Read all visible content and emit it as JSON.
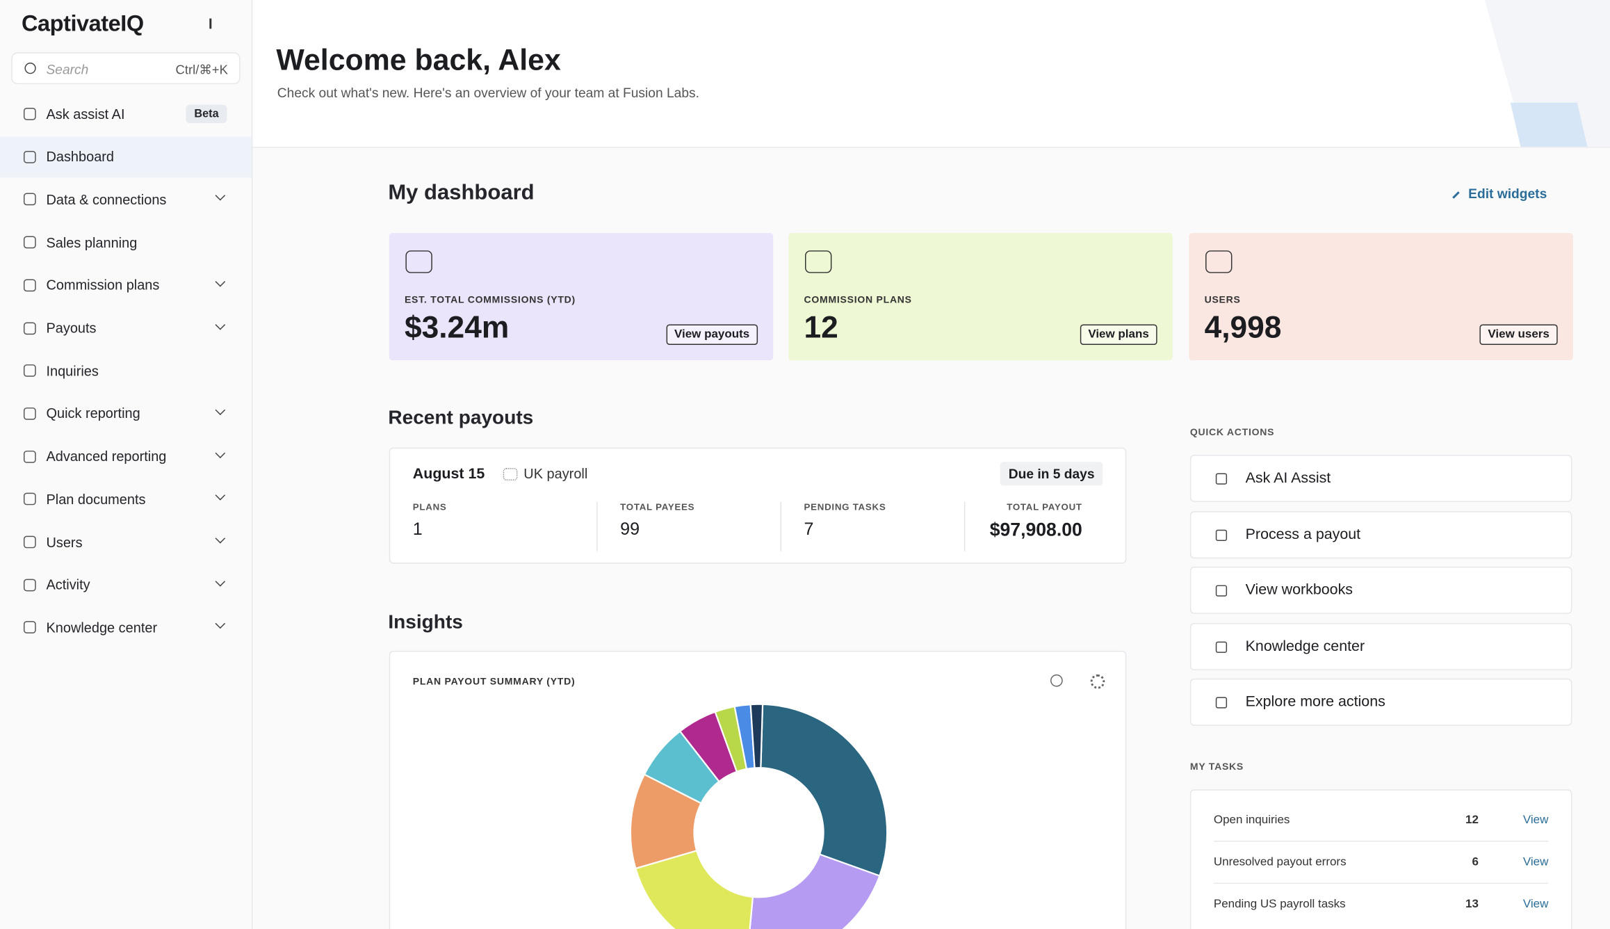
{
  "sidebar": {
    "brand": "CaptivateIQ",
    "search_placeholder": "Search",
    "search_shortcut": "Ctrl/⌘+K",
    "items": [
      {
        "label": "Ask assist AI",
        "badge": "Beta"
      },
      {
        "label": "Dashboard",
        "active": true
      },
      {
        "label": "Data & connections",
        "expandable": true
      },
      {
        "label": "Sales planning"
      },
      {
        "label": "Commission plans",
        "expandable": true
      },
      {
        "label": "Payouts",
        "expandable": true
      },
      {
        "label": "Inquiries"
      },
      {
        "label": "Quick reporting",
        "expandable": true
      },
      {
        "label": "Advanced reporting",
        "expandable": true
      },
      {
        "label": "Plan documents",
        "expandable": true
      },
      {
        "label": "Users",
        "expandable": true
      },
      {
        "label": "Activity",
        "expandable": true
      },
      {
        "label": "Knowledge center",
        "expandable": true
      }
    ]
  },
  "header": {
    "title": "Welcome back, Alex",
    "subtitle": "Check out what's new. Here's an overview of your team at Fusion Labs."
  },
  "dashboard": {
    "title": "My dashboard",
    "edit_label": "Edit widgets",
    "cards": [
      {
        "label": "EST. TOTAL COMMISSIONS (YTD)",
        "value": "$3.24m",
        "button": "View payouts",
        "color": "#ebe5fb"
      },
      {
        "label": "COMMISSION PLANS",
        "value": "12",
        "button": "View plans",
        "color": "#eef8d4"
      },
      {
        "label": "USERS",
        "value": "4,998",
        "button": "View users",
        "color": "#fbe7e1"
      }
    ]
  },
  "payouts": {
    "title": "Recent payouts",
    "date": "August 15",
    "name": "UK payroll",
    "status": "Due in 5 days",
    "stats": [
      {
        "label": "PLANS",
        "value": "1"
      },
      {
        "label": "TOTAL PAYEES",
        "value": "99"
      },
      {
        "label": "PENDING TASKS",
        "value": "7"
      },
      {
        "label": "TOTAL PAYOUT",
        "value": "$97,908.00"
      }
    ]
  },
  "insights": {
    "title": "Insights",
    "chart": {
      "type": "pie",
      "title": "PLAN PAYOUT SUMMARY (YTD)",
      "values": [
        30,
        21,
        19,
        12,
        7,
        5,
        2.5,
        2,
        1.5
      ],
      "colors": [
        "#2b6680",
        "#b59cf2",
        "#dfe85a",
        "#ee9c67",
        "#5bbfcf",
        "#b0298e",
        "#b8d84a",
        "#4a8be6",
        "#1e3a5a"
      ]
    }
  },
  "quick_actions": {
    "title": "QUICK ACTIONS",
    "items": [
      "Ask AI Assist",
      "Process a payout",
      "View workbooks",
      "Knowledge center",
      "Explore more actions"
    ]
  },
  "tasks": {
    "title": "MY TASKS",
    "items": [
      {
        "label": "Open inquiries",
        "count": "12",
        "action": "View"
      },
      {
        "label": "Unresolved payout  errors",
        "count": "6",
        "action": "View"
      },
      {
        "label": "Pending US payroll tasks",
        "count": "13",
        "action": "View"
      }
    ]
  }
}
